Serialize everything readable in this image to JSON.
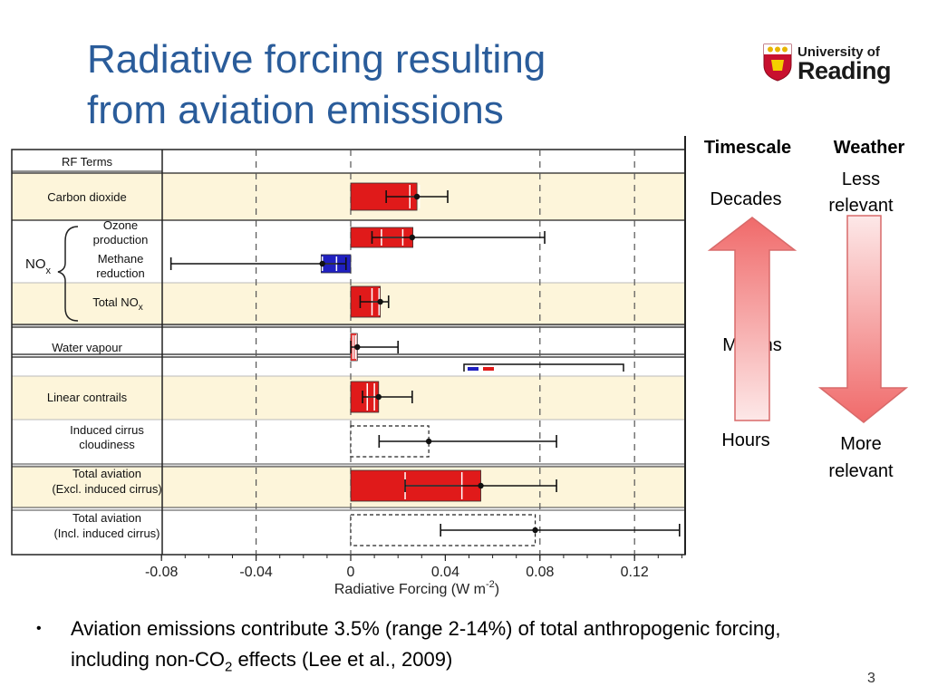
{
  "slide": {
    "title_line1": "Radiative forcing resulting",
    "title_line2": "from aviation emissions",
    "logo_line1": "University of",
    "logo_line2": "Reading",
    "page_number": "3",
    "bullet_text": "Aviation emissions contribute 3.5% (range 2-14%) of total anthropogenic forcing, including non-CO",
    "bullet_sub": "2",
    "bullet_text_end": " effects (Lee et al., 2009)"
  },
  "side_panel": {
    "timescale_header": "Timescale",
    "weather_header": "Weather",
    "timescale_labels": [
      "Decades",
      "Months",
      "Hours"
    ],
    "weather_top_line1": "Less",
    "weather_top_line2": "relevant",
    "weather_bottom_line1": "More",
    "weather_bottom_line2": "relevant",
    "arrow_color": "#f07070"
  },
  "chart_data": {
    "type": "bar",
    "orientation": "horizontal",
    "header": "RF Terms",
    "xlabel": "Radiative Forcing  (W m",
    "xlabel_sup": "-2",
    "xlabel_end": ")",
    "xlim": [
      -0.08,
      0.14
    ],
    "xticks": [
      -0.08,
      -0.04,
      0,
      0.04,
      0.08,
      0.12
    ],
    "xtick_labels": [
      "-0.08",
      "-0.04",
      "0",
      "0.04",
      "0.08",
      "0.12"
    ],
    "dashed_gridlines": [
      -0.04,
      0,
      0.08,
      0.12
    ],
    "nox_group_label": "NO",
    "nox_group_sub": "x",
    "colors": {
      "positive": "#e01a1a",
      "negative": "#2020c0",
      "band": "#fdf5da"
    },
    "items": [
      {
        "label1": "Carbon dioxide",
        "label2": "",
        "value": 0.028,
        "bar_end": 0.028,
        "ci": [
          0.015,
          0.041
        ],
        "inner": [
          0.025,
          0.029
        ],
        "band": true,
        "style": "solid"
      },
      {
        "label1": "Ozone",
        "label2": "production",
        "value": 0.026,
        "bar_end": 0.0263,
        "ci": [
          0.009,
          0.082
        ],
        "inner": [
          0.013,
          0.022
        ],
        "band": false,
        "style": "solid"
      },
      {
        "label1": "Methane",
        "label2": "reduction",
        "value": -0.012,
        "bar_end": -0.0125,
        "ci": [
          -0.076,
          -0.002
        ],
        "inner": [
          -0.012,
          -0.006
        ],
        "band": false,
        "style": "solid"
      },
      {
        "label1": "Total NO",
        "label1_sub": "x",
        "label2": "",
        "value": 0.0125,
        "bar_end": 0.0125,
        "ci": [
          0.004,
          0.016
        ],
        "inner": [
          0.009,
          0.012
        ],
        "band": true,
        "style": "solid"
      },
      {
        "label1": "Water vapour",
        "label2": "",
        "value": 0.0028,
        "bar_end": 0.0028,
        "ci": [
          0.0,
          0.02
        ],
        "inner": [
          0.001,
          0.002
        ],
        "band": false,
        "style": "solid"
      },
      {
        "label1": "Linear contrails",
        "label2": "",
        "value": 0.0118,
        "bar_end": 0.0118,
        "ci": [
          0.005,
          0.026
        ],
        "inner": [
          0.007,
          0.01
        ],
        "band": true,
        "style": "solid"
      },
      {
        "label1": "Induced cirrus",
        "label2": "cloudiness",
        "value": 0.033,
        "bar_end": 0.033,
        "ci": [
          0.012,
          0.087
        ],
        "inner": null,
        "band": false,
        "style": "dashed"
      },
      {
        "label1": "Total aviation",
        "label2": "(Excl. induced cirrus)",
        "value": 0.055,
        "bar_end": 0.055,
        "ci": [
          0.023,
          0.087
        ],
        "inner": [
          0.023,
          0.047
        ],
        "band": true,
        "style": "solid"
      },
      {
        "label1": "Total aviation",
        "label2": "(Incl. induced cirrus)",
        "value": 0.078,
        "bar_end": 0.078,
        "ci": [
          0.038,
          0.139
        ],
        "inner": null,
        "band": false,
        "style": "dashed"
      }
    ]
  }
}
